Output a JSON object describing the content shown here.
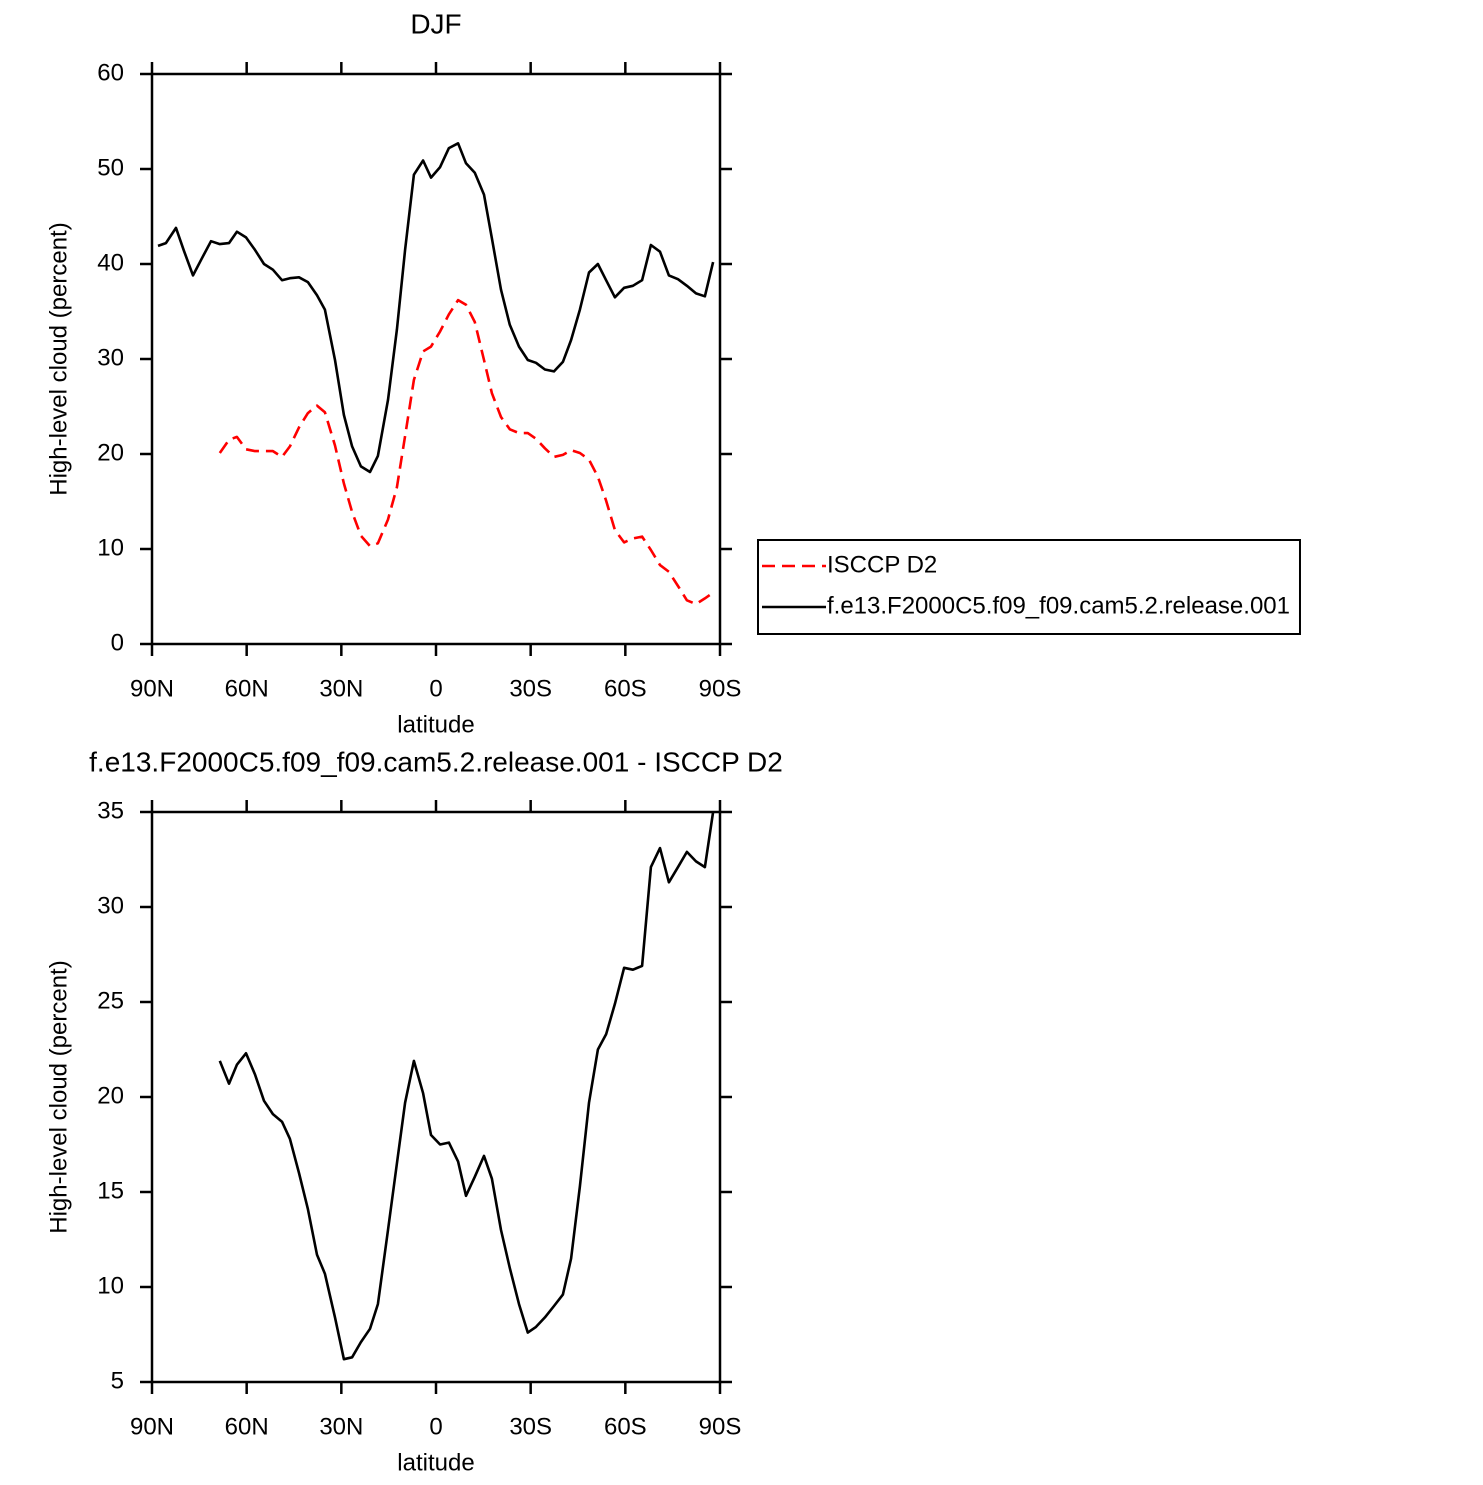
{
  "chart_data": [
    {
      "type": "line",
      "title": "DJF",
      "xlabel": "latitude",
      "ylabel": "High-level cloud (percent)",
      "x": [
        88.1,
        85.6,
        82.4,
        79.9,
        77.0,
        74.2,
        71.3,
        68.5,
        65.6,
        63.1,
        60.2,
        57.4,
        54.5,
        51.7,
        48.8,
        46.3,
        43.4,
        40.6,
        37.7,
        35.2,
        32.0,
        29.2,
        26.6,
        23.8,
        20.9,
        18.4,
        15.2,
        12.4,
        9.8,
        7.0,
        4.1,
        1.6,
        -1.3,
        -4.1,
        -7.0,
        -9.5,
        -12.3,
        -15.2,
        -17.7,
        -20.6,
        -23.4,
        -26.3,
        -29.1,
        -31.7,
        -34.5,
        -37.4,
        -40.2,
        -42.8,
        -45.6,
        -48.5,
        -51.3,
        -53.9,
        -56.7,
        -59.6,
        -62.4,
        -65.3,
        -68.1,
        -71.0,
        -73.8,
        -76.7,
        -79.5,
        -82.4,
        -85.2,
        -87.8
      ],
      "series": [
        {
          "name": "ISCCP D2",
          "color": "#ff0000",
          "dashed": true,
          "values": [
            null,
            null,
            null,
            null,
            null,
            null,
            null,
            20.1,
            21.5,
            21.8,
            20.5,
            20.3,
            20.3,
            20.3,
            19.7,
            20.8,
            22.8,
            24.3,
            25.1,
            24.4,
            20.9,
            16.9,
            13.9,
            11.4,
            10.3,
            10.6,
            13.1,
            16.5,
            21.9,
            27.8,
            30.8,
            31.3,
            32.9,
            34.7,
            36.2,
            35.7,
            33.9,
            29.9,
            26.4,
            23.9,
            22.6,
            22.2,
            22.2,
            21.6,
            20.6,
            19.7,
            19.9,
            20.4,
            20.1,
            19.4,
            17.6,
            15.1,
            12.0,
            10.7,
            11.1,
            11.3,
            9.9,
            8.3,
            7.6,
            6.1,
            4.6,
            4.2,
            4.8,
            5.4
          ]
        },
        {
          "name": "f.e13.F2000C5.f09_f09.cam5.2.release.001",
          "color": "#000000",
          "dashed": false,
          "values": [
            41.9,
            42.2,
            43.8,
            41.4,
            38.8,
            40.6,
            42.4,
            42.1,
            42.2,
            43.4,
            42.8,
            41.5,
            40.0,
            39.4,
            38.3,
            38.5,
            38.6,
            38.1,
            36.7,
            35.2,
            29.9,
            24.1,
            20.8,
            18.7,
            18.1,
            19.8,
            25.7,
            33.1,
            41.5,
            49.4,
            50.9,
            49.1,
            50.2,
            52.2,
            52.7,
            50.6,
            49.6,
            47.3,
            42.7,
            37.3,
            33.6,
            31.3,
            29.9,
            29.6,
            28.9,
            28.7,
            29.7,
            32.0,
            35.2,
            39.1,
            40.0,
            38.3,
            36.5,
            37.5,
            37.7,
            38.3,
            42.0,
            41.3,
            38.8,
            38.4,
            37.7,
            36.9,
            36.6,
            40.2
          ]
        }
      ],
      "xlim": [
        90,
        -90
      ],
      "xticks": [
        {
          "value": 90,
          "label": "90N"
        },
        {
          "value": 60,
          "label": "60N"
        },
        {
          "value": 30,
          "label": "30N"
        },
        0,
        {
          "value": -30,
          "label": "30S"
        },
        {
          "value": -60,
          "label": "60S"
        },
        {
          "value": -90,
          "label": "90S"
        }
      ],
      "ylim": [
        0,
        60
      ],
      "yticks": [
        0,
        10,
        20,
        30,
        40,
        50,
        60
      ],
      "legend": "right"
    },
    {
      "type": "line",
      "title": "f.e13.F2000C5.f09_f09.cam5.2.release.001 - ISCCP D2",
      "xlabel": "latitude",
      "ylabel": "High-level cloud (percent)",
      "x": [
        68.5,
        65.6,
        63.1,
        60.2,
        57.4,
        54.5,
        51.7,
        48.8,
        46.3,
        43.4,
        40.6,
        37.7,
        35.2,
        32.0,
        29.2,
        26.6,
        23.8,
        20.9,
        18.4,
        15.2,
        12.4,
        9.8,
        7.0,
        4.1,
        1.6,
        -1.3,
        -4.1,
        -7.0,
        -9.5,
        -12.3,
        -15.2,
        -17.7,
        -20.6,
        -23.4,
        -26.3,
        -29.1,
        -31.7,
        -34.5,
        -37.4,
        -40.2,
        -42.8,
        -45.6,
        -48.5,
        -51.3,
        -53.9,
        -56.7,
        -59.6,
        -62.4,
        -65.3,
        -68.1,
        -71.0,
        -73.8,
        -76.7,
        -79.5,
        -82.4,
        -85.2,
        -87.8
      ],
      "series": [
        {
          "color": "#000000",
          "dashed": false,
          "values": [
            21.9,
            20.7,
            21.7,
            22.3,
            21.2,
            19.8,
            19.1,
            18.7,
            17.8,
            16.0,
            14.1,
            11.7,
            10.7,
            8.4,
            6.2,
            6.3,
            7.1,
            7.8,
            9.1,
            13.0,
            16.5,
            19.7,
            21.9,
            20.2,
            18.0,
            17.5,
            17.6,
            16.6,
            14.8,
            15.8,
            16.9,
            15.7,
            13.0,
            11.0,
            9.1,
            7.6,
            7.9,
            8.4,
            9.0,
            9.6,
            11.5,
            15.3,
            19.7,
            22.5,
            23.3,
            24.9,
            26.8,
            26.7,
            26.9,
            32.1,
            33.1,
            31.3,
            32.1,
            32.9,
            32.4,
            32.1,
            35.0
          ]
        }
      ],
      "xlim": [
        90,
        -90
      ],
      "xticks": [
        {
          "value": 90,
          "label": "90N"
        },
        {
          "value": 60,
          "label": "60N"
        },
        {
          "value": 30,
          "label": "30N"
        },
        0,
        {
          "value": -30,
          "label": "30S"
        },
        {
          "value": -60,
          "label": "60S"
        },
        {
          "value": -90,
          "label": "90S"
        }
      ],
      "ylim": [
        5,
        35
      ],
      "yticks": [
        5,
        10,
        15,
        20,
        25,
        30,
        35
      ]
    }
  ]
}
